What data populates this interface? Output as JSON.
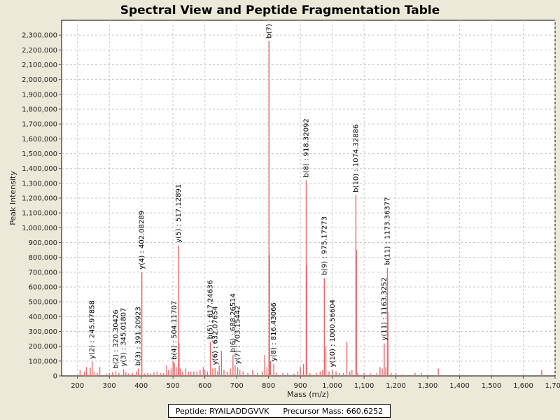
{
  "chart_data": {
    "type": "bar",
    "title": "Spectral View and Peptide Fragmentation Table",
    "xlabel": "Mass (m/z)",
    "ylabel": "Peak Intensity",
    "xlim": [
      150,
      1700
    ],
    "ylim": [
      0,
      2400000
    ],
    "x_ticks": [
      200,
      300,
      400,
      500,
      600,
      700,
      800,
      900,
      1000,
      1100,
      1200,
      1300,
      1400,
      1500,
      1600,
      1700
    ],
    "x_tick_labels": [
      "200",
      "300",
      "400",
      "500",
      "600",
      "700",
      "800",
      "900",
      "1,000",
      "1,100",
      "1,200",
      "1,300",
      "1,400",
      "1,500",
      "1,600",
      "1,700"
    ],
    "y_ticks": [
      0,
      100000,
      200000,
      300000,
      400000,
      500000,
      600000,
      700000,
      800000,
      900000,
      1000000,
      1100000,
      1200000,
      1300000,
      1400000,
      1500000,
      1600000,
      1700000,
      1800000,
      1900000,
      2000000,
      2100000,
      2200000,
      2300000
    ],
    "y_tick_labels": [
      "0",
      "100,000",
      "200,000",
      "300,000",
      "400,000",
      "500,000",
      "600,000",
      "700,000",
      "800,000",
      "900,000",
      "1,000,000",
      "1,100,000",
      "1,200,000",
      "1,300,000",
      "1,400,000",
      "1,500,000",
      "1,600,000",
      "1,700,000",
      "1,800,000",
      "1,900,000",
      "2,000,000",
      "2,100,000",
      "2,200,000",
      "2,300,000"
    ],
    "grid": true,
    "series_color": "#e8696b",
    "peaks": [
      {
        "x": 208,
        "y": 40000
      },
      {
        "x": 222,
        "y": 30000
      },
      {
        "x": 228,
        "y": 60000
      },
      {
        "x": 240,
        "y": 55000
      },
      {
        "x": 245.98,
        "y": 95000
      },
      {
        "x": 252,
        "y": 30000
      },
      {
        "x": 262,
        "y": 20000
      },
      {
        "x": 270,
        "y": 60000
      },
      {
        "x": 290,
        "y": 15000
      },
      {
        "x": 300,
        "y": 20000
      },
      {
        "x": 310,
        "y": 25000
      },
      {
        "x": 320.3,
        "y": 30000
      },
      {
        "x": 330,
        "y": 20000
      },
      {
        "x": 345.02,
        "y": 45000
      },
      {
        "x": 352,
        "y": 25000
      },
      {
        "x": 360,
        "y": 15000
      },
      {
        "x": 372,
        "y": 20000
      },
      {
        "x": 385,
        "y": 30000
      },
      {
        "x": 391.21,
        "y": 50000
      },
      {
        "x": 402.08,
        "y": 700000
      },
      {
        "x": 410,
        "y": 15000
      },
      {
        "x": 420,
        "y": 20000
      },
      {
        "x": 430,
        "y": 15000
      },
      {
        "x": 440,
        "y": 25000
      },
      {
        "x": 450,
        "y": 30000
      },
      {
        "x": 460,
        "y": 20000
      },
      {
        "x": 470,
        "y": 20000
      },
      {
        "x": 480,
        "y": 70000
      },
      {
        "x": 486,
        "y": 40000
      },
      {
        "x": 494,
        "y": 50000
      },
      {
        "x": 500,
        "y": 100000
      },
      {
        "x": 504.12,
        "y": 90000
      },
      {
        "x": 510,
        "y": 60000
      },
      {
        "x": 517.13,
        "y": 880000
      },
      {
        "x": 519,
        "y": 220000
      },
      {
        "x": 523,
        "y": 50000
      },
      {
        "x": 530,
        "y": 30000
      },
      {
        "x": 540,
        "y": 50000
      },
      {
        "x": 548,
        "y": 30000
      },
      {
        "x": 556,
        "y": 30000
      },
      {
        "x": 565,
        "y": 30000
      },
      {
        "x": 575,
        "y": 30000
      },
      {
        "x": 585,
        "y": 40000
      },
      {
        "x": 595,
        "y": 60000
      },
      {
        "x": 600,
        "y": 40000
      },
      {
        "x": 608,
        "y": 30000
      },
      {
        "x": 617.25,
        "y": 230000
      },
      {
        "x": 625,
        "y": 50000
      },
      {
        "x": 632.08,
        "y": 55000
      },
      {
        "x": 640,
        "y": 30000
      },
      {
        "x": 645,
        "y": 70000
      },
      {
        "x": 652,
        "y": 170000
      },
      {
        "x": 660,
        "y": 40000
      },
      {
        "x": 670,
        "y": 30000
      },
      {
        "x": 680,
        "y": 50000
      },
      {
        "x": 688.27,
        "y": 140000
      },
      {
        "x": 695,
        "y": 70000
      },
      {
        "x": 703.15,
        "y": 60000
      },
      {
        "x": 710,
        "y": 40000
      },
      {
        "x": 720,
        "y": 30000
      },
      {
        "x": 735,
        "y": 20000
      },
      {
        "x": 750,
        "y": 40000
      },
      {
        "x": 765,
        "y": 20000
      },
      {
        "x": 780,
        "y": 30000
      },
      {
        "x": 788,
        "y": 140000
      },
      {
        "x": 795,
        "y": 60000
      },
      {
        "x": 801.5,
        "y": 2260000
      },
      {
        "x": 803,
        "y": 820000
      },
      {
        "x": 806,
        "y": 100000
      },
      {
        "x": 816.4,
        "y": 80000
      },
      {
        "x": 825,
        "y": 20000
      },
      {
        "x": 845,
        "y": 20000
      },
      {
        "x": 860,
        "y": 20000
      },
      {
        "x": 880,
        "y": 15000
      },
      {
        "x": 892,
        "y": 30000
      },
      {
        "x": 900,
        "y": 60000
      },
      {
        "x": 910,
        "y": 80000
      },
      {
        "x": 918.32,
        "y": 1320000
      },
      {
        "x": 920,
        "y": 750000
      },
      {
        "x": 930,
        "y": 20000
      },
      {
        "x": 950,
        "y": 20000
      },
      {
        "x": 962,
        "y": 30000
      },
      {
        "x": 970,
        "y": 40000
      },
      {
        "x": 975.17,
        "y": 660000
      },
      {
        "x": 980,
        "y": 200000
      },
      {
        "x": 990,
        "y": 30000
      },
      {
        "x": 1000.57,
        "y": 40000
      },
      {
        "x": 1012,
        "y": 30000
      },
      {
        "x": 1022,
        "y": 20000
      },
      {
        "x": 1035,
        "y": 20000
      },
      {
        "x": 1046,
        "y": 230000
      },
      {
        "x": 1055,
        "y": 30000
      },
      {
        "x": 1062,
        "y": 40000
      },
      {
        "x": 1074.33,
        "y": 1220000
      },
      {
        "x": 1076,
        "y": 850000
      },
      {
        "x": 1080,
        "y": 20000
      },
      {
        "x": 1100,
        "y": 20000
      },
      {
        "x": 1120,
        "y": 15000
      },
      {
        "x": 1140,
        "y": 20000
      },
      {
        "x": 1150,
        "y": 60000
      },
      {
        "x": 1157,
        "y": 50000
      },
      {
        "x": 1163.33,
        "y": 220000
      },
      {
        "x": 1168,
        "y": 60000
      },
      {
        "x": 1173.36,
        "y": 730000
      },
      {
        "x": 1175,
        "y": 430000
      },
      {
        "x": 1185,
        "y": 20000
      },
      {
        "x": 1200,
        "y": 20000
      },
      {
        "x": 1220,
        "y": 10000
      },
      {
        "x": 1260,
        "y": 20000
      },
      {
        "x": 1280,
        "y": 20000
      },
      {
        "x": 1333,
        "y": 50000
      },
      {
        "x": 1658,
        "y": 40000
      }
    ],
    "annotations": [
      {
        "label": "y(2) : 245.97858",
        "x": 245.98,
        "y": 95000
      },
      {
        "label": "b(2) : 320.30426",
        "x": 320.3,
        "y": 30000
      },
      {
        "label": "y(3) : 345.01807",
        "x": 345.02,
        "y": 45000
      },
      {
        "label": "b(3) : 391.20923",
        "x": 391.21,
        "y": 50000
      },
      {
        "label": "y(4) : 402.08289",
        "x": 402.08,
        "y": 700000
      },
      {
        "label": "b(4) : 504.11707",
        "x": 504.12,
        "y": 90000
      },
      {
        "label": "y(5) : 517.12891",
        "x": 517.13,
        "y": 880000
      },
      {
        "label": "b(5) : 617.24636",
        "x": 617.25,
        "y": 230000
      },
      {
        "label": "y(6) : 632.07654",
        "x": 632.08,
        "y": 55000
      },
      {
        "label": "b(6) : 688.26514",
        "x": 688.27,
        "y": 140000
      },
      {
        "label": "y(7) : 703.15442",
        "x": 703.15,
        "y": 60000
      },
      {
        "label": "b(7)",
        "x": 801.5,
        "y": 2260000
      },
      {
        "label": "y(8) : 816.43066",
        "x": 816.4,
        "y": 80000
      },
      {
        "label": "b(8) : 918.32092",
        "x": 918.32,
        "y": 1320000
      },
      {
        "label": "b(9) : 975.17273",
        "x": 975.17,
        "y": 660000
      },
      {
        "label": "y(10) : 1000.56604",
        "x": 1000.57,
        "y": 40000
      },
      {
        "label": "b(10) : 1074.32886",
        "x": 1074.33,
        "y": 1220000
      },
      {
        "label": "y(11) : 1163.3252",
        "x": 1163.33,
        "y": 220000
      },
      {
        "label": "b(11) : 1173.36377",
        "x": 1173.36,
        "y": 730000
      }
    ]
  },
  "legend": {
    "peptide_text": "Peptide: RYAILADDGVVK",
    "precursor_text": "Precursor Mass: 660.6252"
  }
}
